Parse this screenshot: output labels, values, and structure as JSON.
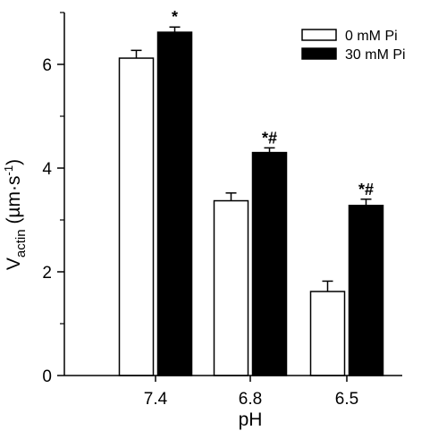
{
  "chart_data": {
    "type": "bar",
    "categories": [
      "7.4",
      "6.8",
      "6.5"
    ],
    "series": [
      {
        "name": "0 mM Pi",
        "values": [
          6.12,
          3.37,
          1.62
        ],
        "errors": [
          0.15,
          0.15,
          0.2
        ],
        "color": "#ffffff"
      },
      {
        "name": "30 mM Pi",
        "values": [
          6.62,
          4.3,
          3.28
        ],
        "errors": [
          0.1,
          0.09,
          0.12
        ],
        "color": "#000000"
      }
    ],
    "annotations": [
      "*",
      "*#",
      "*#"
    ],
    "xlabel": "pH",
    "ylabel_main": "V",
    "ylabel_sub": "actin",
    "ylabel_unit": " (µm·s",
    "ylabel_sup": "-1",
    "ylabel_close": ")",
    "ylim": [
      0,
      7.0
    ],
    "yticks": [
      "0",
      "2",
      "4",
      "6"
    ],
    "legend_position": "top-right",
    "grid": false
  }
}
